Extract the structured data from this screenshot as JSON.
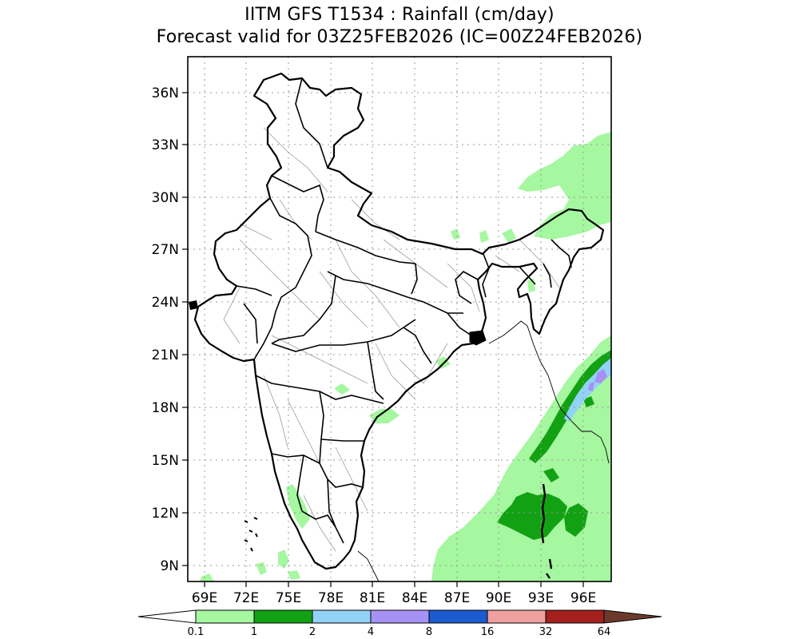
{
  "title": {
    "line1": "IITM GFS T1534 : Rainfall (cm/day)",
    "line2": "Forecast valid for 03Z25FEB2026 (IC=00Z24FEB2026)"
  },
  "map": {
    "lon_range": [
      67.8,
      98.0
    ],
    "lat_range": [
      7.9,
      37.7
    ],
    "lat_ticks": [
      "9N",
      "12N",
      "15N",
      "18N",
      "21N",
      "24N",
      "27N",
      "30N",
      "33N",
      "36N"
    ],
    "lon_ticks": [
      "69E",
      "72E",
      "75E",
      "78E",
      "81E",
      "84E",
      "87E",
      "90E",
      "93E",
      "96E"
    ],
    "grid": "dotted"
  },
  "colorbar": {
    "levels": [
      "0.1",
      "1",
      "2",
      "4",
      "8",
      "16",
      "32",
      "64"
    ],
    "colors": [
      "#ffffff",
      "#a5f7a0",
      "#12a113",
      "#92d2f6",
      "#a692f5",
      "#1b5bd0",
      "#f1a0a0",
      "#a4201d",
      "#6b3a2c"
    ]
  }
}
